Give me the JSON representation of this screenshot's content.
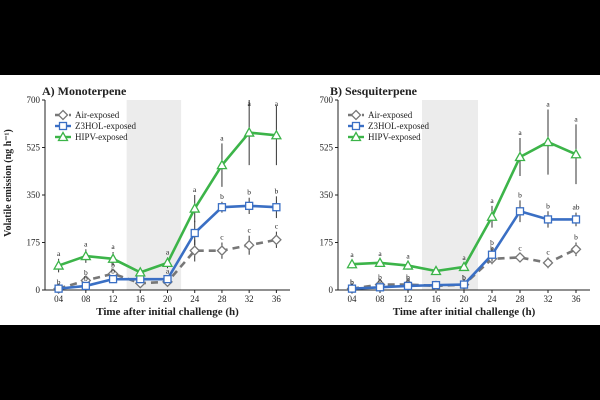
{
  "figure": {
    "ylabel": "Volatile emission (ng h⁻¹)",
    "xlabel": "Time after initial challenge (h)"
  },
  "chart_data": [
    {
      "type": "line",
      "title": "A) Monoterpene",
      "xlabel": "Time after initial challenge (h)",
      "ylabel": "Volatile emission (ng h⁻¹)",
      "categories": [
        "04",
        "08",
        "12",
        "16",
        "20",
        "24",
        "28",
        "32",
        "36"
      ],
      "ylim": [
        0,
        700
      ],
      "yticks": [
        0,
        175,
        350,
        525,
        700
      ],
      "shaded_range": [
        "16",
        "20"
      ],
      "legend_position": "top-left",
      "series": [
        {
          "name": "Air-exposed",
          "color": "#777777",
          "dash": true,
          "marker": "diamond",
          "values": [
            5,
            35,
            60,
            25,
            30,
            145,
            145,
            165,
            185
          ],
          "errors": [
            8,
            10,
            12,
            8,
            10,
            40,
            30,
            35,
            30
          ],
          "letters": [
            "",
            "b",
            "b",
            "",
            "",
            "b",
            "c",
            "c",
            "c"
          ]
        },
        {
          "name": "Z3HOL-exposed",
          "color": "#3A6FC4",
          "dash": false,
          "marker": "square",
          "values": [
            5,
            15,
            40,
            40,
            40,
            210,
            305,
            310,
            305
          ],
          "errors": [
            5,
            8,
            10,
            10,
            10,
            45,
            20,
            30,
            40
          ],
          "letters": [
            "b",
            "b",
            "b",
            "",
            "a",
            "",
            "b",
            "b",
            "b"
          ]
        },
        {
          "name": "HIPV-exposed",
          "color": "#3CB449",
          "dash": false,
          "marker": "triangle",
          "values": [
            90,
            125,
            115,
            65,
            100,
            300,
            460,
            580,
            570
          ],
          "errors": [
            25,
            25,
            25,
            15,
            20,
            50,
            80,
            120,
            110
          ],
          "letters": [
            "a",
            "a",
            "a",
            "",
            "a",
            "a",
            "a",
            "a",
            "a"
          ]
        }
      ]
    },
    {
      "type": "line",
      "title": "B) Sesquiterpene",
      "xlabel": "Time after initial challenge (h)",
      "ylabel": "",
      "categories": [
        "04",
        "08",
        "12",
        "16",
        "20",
        "24",
        "28",
        "32",
        "36"
      ],
      "ylim": [
        0,
        700
      ],
      "yticks": [
        0,
        175,
        350,
        525,
        700
      ],
      "shaded_range": [
        "16",
        "20"
      ],
      "legend_position": "top-left",
      "series": [
        {
          "name": "Air-exposed",
          "color": "#777777",
          "dash": true,
          "marker": "diamond",
          "values": [
            5,
            20,
            20,
            15,
            20,
            115,
            120,
            100,
            150
          ],
          "errors": [
            5,
            8,
            8,
            5,
            5,
            20,
            15,
            20,
            25
          ],
          "letters": [
            "b",
            "b",
            "b",
            "",
            "b",
            "b",
            "c",
            "c",
            "b"
          ]
        },
        {
          "name": "Z3HOL-exposed",
          "color": "#3A6FC4",
          "dash": false,
          "marker": "square",
          "values": [
            5,
            10,
            15,
            18,
            20,
            130,
            290,
            260,
            260
          ],
          "errors": [
            5,
            5,
            5,
            5,
            5,
            25,
            40,
            30,
            25
          ],
          "letters": [
            "b",
            "b",
            "b",
            "",
            "b",
            "b",
            "b",
            "b",
            "ab"
          ]
        },
        {
          "name": "HIPV-exposed",
          "color": "#3CB449",
          "dash": false,
          "marker": "triangle",
          "values": [
            95,
            100,
            90,
            70,
            85,
            270,
            490,
            545,
            500
          ],
          "errors": [
            15,
            15,
            15,
            10,
            15,
            40,
            70,
            120,
            110
          ],
          "letters": [
            "a",
            "a",
            "a",
            "",
            "a",
            "a",
            "a",
            "a",
            "a"
          ]
        }
      ]
    }
  ]
}
